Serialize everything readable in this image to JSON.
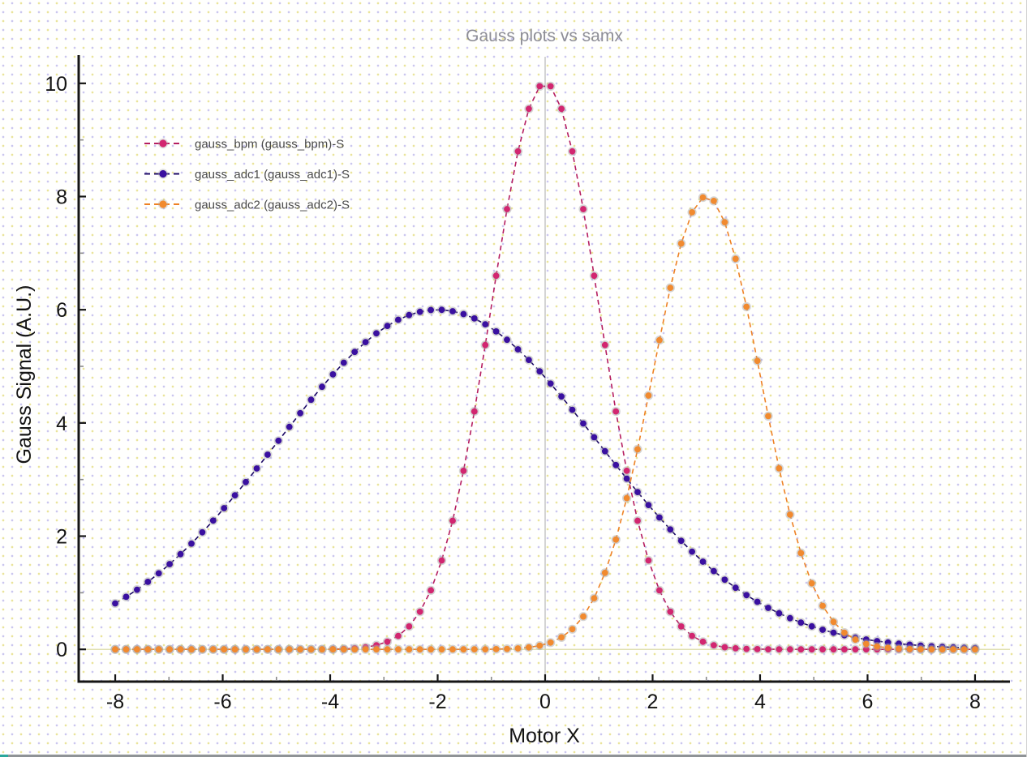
{
  "window": {
    "background_dot_colors": [
      "#eae49b",
      "#cbc7ef"
    ],
    "bottom_border_color": "#8f9396",
    "bottom_border_accent_color": "#2aa79b",
    "right_border_color": "#d2d2d2"
  },
  "chart_data": {
    "type": "line",
    "title": "Gauss plots vs samx",
    "xlabel": "Motor X",
    "ylabel": "Gauss Signal (A.U.)",
    "xlim": [
      -8.68,
      8.65
    ],
    "ylim": [
      -0.57,
      10.47
    ],
    "x_ticks_major": [
      -8,
      -6,
      -4,
      -2,
      0,
      2,
      4,
      6,
      8
    ],
    "x_ticks_minor": [
      -7,
      -5,
      -3,
      -1,
      1,
      3,
      5,
      7
    ],
    "y_ticks_major": [
      0,
      2,
      4,
      6,
      8,
      10
    ],
    "y_ticks_minor": [
      1,
      3,
      5,
      7,
      9
    ],
    "grid": false,
    "legend_position": "upper-left",
    "axis_color": "#151515",
    "minor_tick_color": "#8a8a8a",
    "title_color": "#8d8d96",
    "reference_lines": {
      "vertical_x": 0,
      "vertical_color": "#c2c2c2",
      "horizontal_y": 0,
      "horizontal_color": "#d6d598"
    },
    "marker_halo_color": "#a9a9a9",
    "x_sampling": {
      "min": -8,
      "max": 8,
      "n_points": 80
    },
    "x_int": [
      -8,
      -7,
      -6,
      -5,
      -4,
      -3,
      -2,
      -1,
      0,
      1,
      2,
      3,
      4,
      5,
      6,
      7,
      8
    ],
    "series": [
      {
        "name": "gauss_bpm (gauss_bpm)-S",
        "color": "#d22670",
        "line_color": "#b51d60",
        "amplitude": 10,
        "center": 0,
        "sigma": 1,
        "y_at_x_int": [
          0,
          0,
          0,
          0,
          0.003,
          0.111,
          1.353,
          6.065,
          10,
          6.065,
          1.353,
          0.111,
          0.003,
          0,
          0,
          0,
          0
        ]
      },
      {
        "name": "gauss_adc1 (gauss_adc1)-S",
        "color": "#3a10a0",
        "line_color": "#1d0a66",
        "amplitude": 6,
        "center": -2,
        "sigma": 3,
        "y_at_x_int": [
          0.812,
          1.496,
          2.466,
          3.639,
          4.805,
          5.676,
          6,
          5.676,
          4.805,
          3.639,
          2.466,
          1.496,
          0.812,
          0.394,
          0.171,
          0.067,
          0.023
        ]
      },
      {
        "name": "gauss_adc2 (gauss_adc2)-S",
        "color": "#f18a2f",
        "line_color": "#ee8124",
        "amplitude": 8,
        "center": 3,
        "sigma": 1,
        "y_at_x_int": [
          0,
          0,
          0,
          0,
          0,
          0,
          0,
          0.003,
          0.089,
          1.083,
          4.852,
          8,
          4.852,
          1.083,
          0.089,
          0.003,
          0
        ]
      }
    ]
  }
}
